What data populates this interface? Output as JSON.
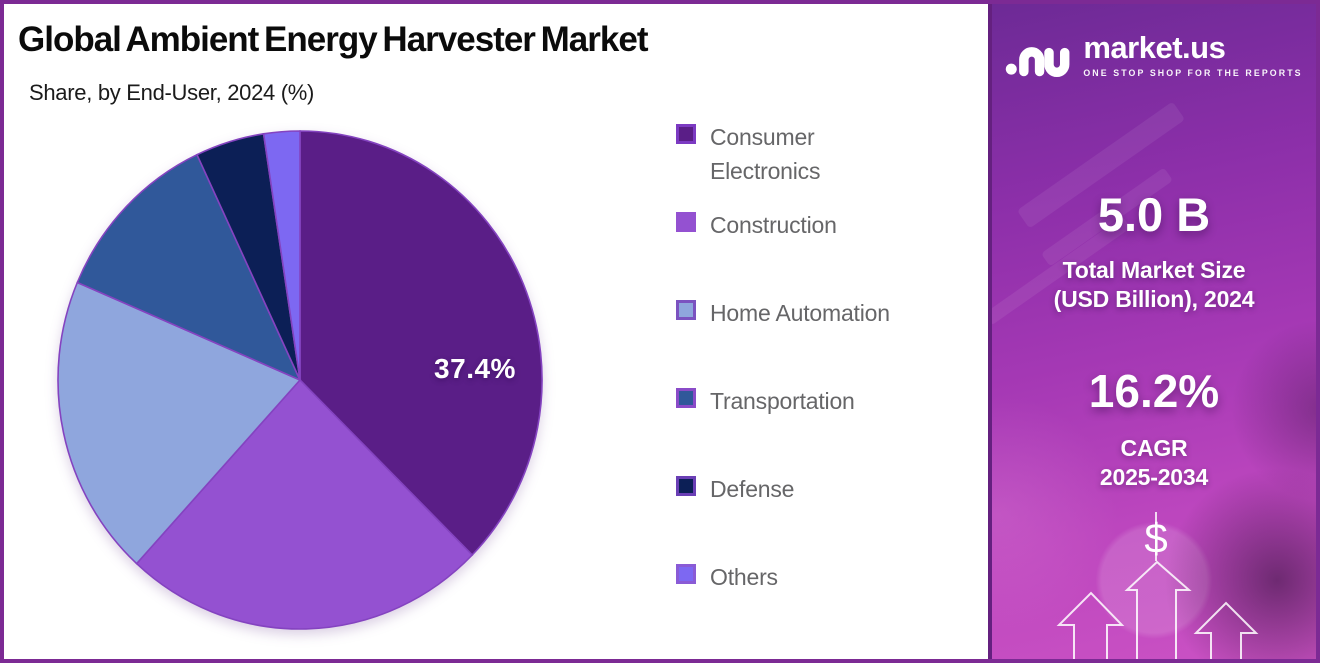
{
  "page": {
    "title": "Global Ambient Energy Harvester Market",
    "subtitle": "Share, by End-User, 2024 (%)"
  },
  "chart_data": {
    "type": "pie",
    "title": "Global Ambient Energy Harvester Market",
    "subtitle": "Share, by End-User, 2024 (%)",
    "unit": "percent",
    "start_angle": "12-oclock",
    "direction": "clockwise",
    "legend_position": "right",
    "only_displayed_data_label": "37.4%",
    "slices": [
      {
        "label": "Consumer Electronics",
        "value": 37.4,
        "value_shown": "37.4%",
        "color": "#5a1e87",
        "border": "#7c3ac2"
      },
      {
        "label": "Construction",
        "value": 24.4,
        "value_shown": "",
        "color": "#9451d1",
        "border": "#9451d1"
      },
      {
        "label": "Home Automation",
        "value": 19.6,
        "value_shown": "",
        "color": "#8fa6dd",
        "border": "#7b52c0"
      },
      {
        "label": "Transportation",
        "value": 11.6,
        "value_shown": "",
        "color": "#30589a",
        "border": "#8a4bc8"
      },
      {
        "label": "Defense",
        "value": 4.6,
        "value_shown": "",
        "color": "#0c1f56",
        "border": "#6a3fb5"
      },
      {
        "label": "Others",
        "value": 2.4,
        "value_shown": "",
        "color": "#7d68f2",
        "border": "#8a5bd6"
      }
    ]
  },
  "legend": {
    "items": [
      {
        "line1": "Consumer",
        "line2": "Electronics"
      },
      {
        "line1": "Construction",
        "line2": ""
      },
      {
        "line1": "Home Automation",
        "line2": ""
      },
      {
        "line1": "Transportation",
        "line2": ""
      },
      {
        "line1": "Defense",
        "line2": ""
      },
      {
        "line1": "Others",
        "line2": ""
      }
    ]
  },
  "sidebar": {
    "brand": "market.us",
    "tagline": "ONE STOP SHOP FOR THE REPORTS",
    "market_size_value": "5.0 B",
    "market_size_label1": "Total Market Size",
    "market_size_label2": "(USD Billion), 2024",
    "cagr_value": "16.2%",
    "cagr_label1": "CAGR",
    "cagr_label2": "2025-2034",
    "dollar_symbol": "$"
  }
}
